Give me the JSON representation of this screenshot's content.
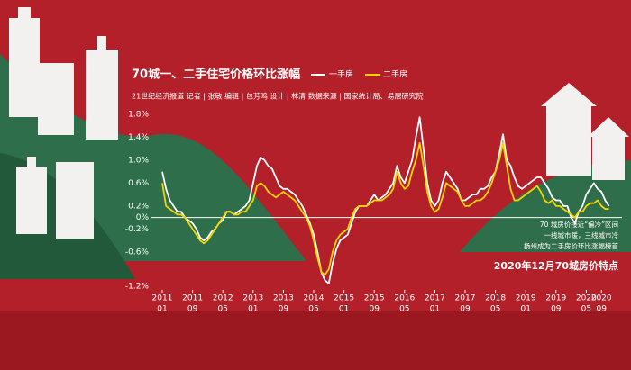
{
  "chart_data": {
    "type": "line",
    "title": "70城一、二手住宅价格环比涨幅",
    "subtitle": "21世纪经济报道  记者 | 张敏  编辑 | 包芳鸣  设计 | 林清  数据来源 | 国家统计局、易居研究院",
    "annotations": [
      "70 城房价接近“偏冷”区间",
      "一线城市暖，三线城市冷",
      "扬州成为二手房价环比涨幅榜首"
    ],
    "caption": "2020年12月70城房价特点",
    "x": [
      "2011-01",
      "2011-02",
      "2011-03",
      "2011-04",
      "2011-05",
      "2011-06",
      "2011-07",
      "2011-08",
      "2011-09",
      "2011-10",
      "2011-11",
      "2011-12",
      "2012-01",
      "2012-02",
      "2012-03",
      "2012-04",
      "2012-05",
      "2012-06",
      "2012-07",
      "2012-08",
      "2012-09",
      "2012-10",
      "2012-11",
      "2012-12",
      "2013-01",
      "2013-02",
      "2013-03",
      "2013-04",
      "2013-05",
      "2013-06",
      "2013-07",
      "2013-08",
      "2013-09",
      "2013-10",
      "2013-11",
      "2013-12",
      "2014-01",
      "2014-02",
      "2014-03",
      "2014-04",
      "2014-05",
      "2014-06",
      "2014-07",
      "2014-08",
      "2014-09",
      "2014-10",
      "2014-11",
      "2014-12",
      "2015-01",
      "2015-02",
      "2015-03",
      "2015-04",
      "2015-05",
      "2015-06",
      "2015-07",
      "2015-08",
      "2015-09",
      "2015-10",
      "2015-11",
      "2015-12",
      "2016-01",
      "2016-02",
      "2016-03",
      "2016-04",
      "2016-05",
      "2016-06",
      "2016-07",
      "2016-08",
      "2016-09",
      "2016-10",
      "2016-11",
      "2016-12",
      "2017-01",
      "2017-02",
      "2017-03",
      "2017-04",
      "2017-05",
      "2017-06",
      "2017-07",
      "2017-08",
      "2017-09",
      "2017-10",
      "2017-11",
      "2017-12",
      "2018-01",
      "2018-02",
      "2018-03",
      "2018-04",
      "2018-05",
      "2018-06",
      "2018-07",
      "2018-08",
      "2018-09",
      "2018-10",
      "2018-11",
      "2018-12",
      "2019-01",
      "2019-02",
      "2019-03",
      "2019-04",
      "2019-05",
      "2019-06",
      "2019-07",
      "2019-08",
      "2019-09",
      "2019-10",
      "2019-11",
      "2019-12",
      "2020-01",
      "2020-02",
      "2020-03",
      "2020-04",
      "2020-05",
      "2020-06",
      "2020-07",
      "2020-08",
      "2020-09",
      "2020-10",
      "2020-11"
    ],
    "series": [
      {
        "name": "一手房",
        "color": "#ffffff",
        "values": [
          0.8,
          0.5,
          0.3,
          0.2,
          0.1,
          0.1,
          0.0,
          -0.05,
          -0.1,
          -0.2,
          -0.35,
          -0.4,
          -0.35,
          -0.25,
          -0.2,
          -0.1,
          -0.05,
          0.1,
          0.1,
          0.05,
          0.1,
          0.15,
          0.2,
          0.3,
          0.6,
          0.9,
          1.05,
          1.0,
          0.9,
          0.85,
          0.7,
          0.55,
          0.5,
          0.5,
          0.45,
          0.4,
          0.3,
          0.2,
          0.05,
          -0.1,
          -0.3,
          -0.6,
          -0.95,
          -1.1,
          -1.15,
          -0.8,
          -0.55,
          -0.4,
          -0.35,
          -0.3,
          -0.1,
          0.1,
          0.2,
          0.2,
          0.2,
          0.3,
          0.4,
          0.3,
          0.35,
          0.4,
          0.5,
          0.6,
          0.9,
          0.7,
          0.6,
          0.8,
          1.0,
          1.4,
          1.75,
          1.2,
          0.6,
          0.3,
          0.2,
          0.3,
          0.6,
          0.8,
          0.7,
          0.6,
          0.5,
          0.3,
          0.3,
          0.35,
          0.4,
          0.4,
          0.5,
          0.5,
          0.55,
          0.7,
          0.8,
          1.1,
          1.45,
          1.0,
          0.9,
          0.7,
          0.55,
          0.5,
          0.55,
          0.6,
          0.65,
          0.7,
          0.7,
          0.6,
          0.5,
          0.35,
          0.3,
          0.3,
          0.2,
          0.2,
          0.0,
          -0.1,
          0.1,
          0.2,
          0.4,
          0.5,
          0.6,
          0.5,
          0.45,
          0.3,
          0.2
        ]
      },
      {
        "name": "二手房",
        "color": "#f2d500",
        "values": [
          0.6,
          0.2,
          0.15,
          0.1,
          0.05,
          0.05,
          0.0,
          -0.1,
          -0.2,
          -0.3,
          -0.4,
          -0.45,
          -0.4,
          -0.3,
          -0.2,
          -0.1,
          0.0,
          0.1,
          0.1,
          0.05,
          0.05,
          0.1,
          0.1,
          0.2,
          0.3,
          0.55,
          0.6,
          0.55,
          0.45,
          0.4,
          0.35,
          0.4,
          0.45,
          0.4,
          0.35,
          0.3,
          0.2,
          0.1,
          0.0,
          -0.15,
          -0.4,
          -0.7,
          -0.95,
          -1.0,
          -0.9,
          -0.6,
          -0.4,
          -0.3,
          -0.25,
          -0.2,
          0.0,
          0.15,
          0.2,
          0.2,
          0.2,
          0.25,
          0.3,
          0.3,
          0.3,
          0.35,
          0.4,
          0.5,
          0.8,
          0.6,
          0.5,
          0.55,
          0.8,
          1.0,
          1.3,
          0.9,
          0.45,
          0.2,
          0.1,
          0.15,
          0.35,
          0.6,
          0.55,
          0.5,
          0.45,
          0.3,
          0.2,
          0.2,
          0.25,
          0.3,
          0.3,
          0.35,
          0.45,
          0.6,
          0.8,
          1.0,
          1.3,
          0.9,
          0.5,
          0.3,
          0.3,
          0.35,
          0.4,
          0.45,
          0.5,
          0.55,
          0.45,
          0.3,
          0.25,
          0.3,
          0.2,
          0.2,
          0.15,
          0.1,
          0.05,
          0.0,
          0.1,
          0.1,
          0.2,
          0.25,
          0.25,
          0.3,
          0.2,
          0.15,
          0.15
        ]
      }
    ],
    "ylim": [
      -1.2,
      1.8
    ],
    "yticks": [
      {
        "value": 1.8,
        "label": "1.8%"
      },
      {
        "value": 1.4,
        "label": "1.4%"
      },
      {
        "value": 1.0,
        "label": "1.0%"
      },
      {
        "value": 0.6,
        "label": "0.6%"
      },
      {
        "value": 0.2,
        "label": "0.2%"
      },
      {
        "value": 0,
        "label": "0%"
      },
      {
        "value": -0.2,
        "label": "-0.2%"
      },
      {
        "value": -0.6,
        "label": "-0.6%"
      },
      {
        "value": -1.2,
        "label": "-1.2%"
      }
    ],
    "xticks": [
      {
        "value": "2011-01",
        "label": "2011",
        "sublabel": "01"
      },
      {
        "value": "2011-09",
        "label": "2011",
        "sublabel": "09"
      },
      {
        "value": "2012-05",
        "label": "2012",
        "sublabel": "05"
      },
      {
        "value": "2013-01",
        "label": "2013",
        "sublabel": "01"
      },
      {
        "value": "2013-09",
        "label": "2013",
        "sublabel": "09"
      },
      {
        "value": "2014-05",
        "label": "2014",
        "sublabel": "05"
      },
      {
        "value": "2015-01",
        "label": "2015",
        "sublabel": "01"
      },
      {
        "value": "2015-09",
        "label": "2015",
        "sublabel": "09"
      },
      {
        "value": "2016-05",
        "label": "2016",
        "sublabel": "05"
      },
      {
        "value": "2017-01",
        "label": "2017",
        "sublabel": "01"
      },
      {
        "value": "2017-09",
        "label": "2017",
        "sublabel": "09"
      },
      {
        "value": "2018-05",
        "label": "2018",
        "sublabel": "05"
      },
      {
        "value": "2019-01",
        "label": "2019",
        "sublabel": "01"
      },
      {
        "value": "2019-09",
        "label": "2019",
        "sublabel": "09"
      },
      {
        "value": "2020-05",
        "label": "2020",
        "sublabel": "05"
      },
      {
        "value": "2020-09",
        "label": "2020",
        "sublabel": "09"
      }
    ],
    "grid": false
  }
}
